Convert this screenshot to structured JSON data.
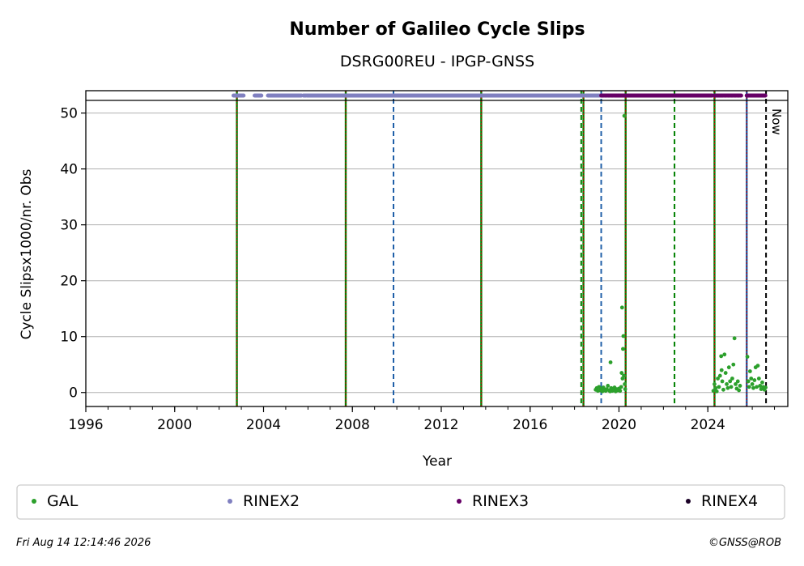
{
  "chart_data": {
    "type": "scatter",
    "title": "Number of Galileo Cycle Slips",
    "subtitle": "DSRG00REU - IPGP-GNSS",
    "xlabel": "Year",
    "ylabel": "Cycle Slipsx1000/nr. Obs",
    "xlim": [
      1996.0,
      2027.6
    ],
    "ylim": [
      -2.5,
      54
    ],
    "xticks": [
      1996,
      2000,
      2004,
      2008,
      2012,
      2016,
      2020,
      2024
    ],
    "yticks": [
      0,
      10,
      20,
      30,
      40,
      50
    ],
    "grid": "horizontal",
    "now_label": "Now",
    "now_x": 2026.62,
    "legend": {
      "placement": "bottom",
      "entries": [
        {
          "label": "GAL",
          "color": "#2ca02c"
        },
        {
          "label": "RINEX2",
          "color": "#8080c0"
        },
        {
          "label": "RINEX3",
          "color": "#660066"
        },
        {
          "label": "RINEX4",
          "color": "#1a0026"
        }
      ]
    },
    "event_lines": [
      {
        "x": 2002.8,
        "style": "solid",
        "colors": [
          "#008000",
          "#cc0000"
        ]
      },
      {
        "x": 2007.7,
        "style": "solid",
        "colors": [
          "#008000",
          "#cc0000"
        ]
      },
      {
        "x": 2009.85,
        "style": "dashed",
        "colors": [
          "#1f5fa8"
        ]
      },
      {
        "x": 2013.8,
        "style": "solid",
        "colors": [
          "#008000",
          "#cc0000"
        ]
      },
      {
        "x": 2018.3,
        "style": "dashed",
        "colors": [
          "#008000"
        ]
      },
      {
        "x": 2018.4,
        "style": "solid",
        "colors": [
          "#008000",
          "#cc0000"
        ]
      },
      {
        "x": 2019.2,
        "style": "dashed",
        "colors": [
          "#1f5fa8"
        ]
      },
      {
        "x": 2020.3,
        "style": "solid",
        "colors": [
          "#008000",
          "#cc0000"
        ]
      },
      {
        "x": 2022.5,
        "style": "dashed",
        "colors": [
          "#008000"
        ]
      },
      {
        "x": 2024.3,
        "style": "solid",
        "colors": [
          "#008000",
          "#cc0000"
        ]
      },
      {
        "x": 2025.75,
        "style": "solid",
        "colors": [
          "#1f5fa8",
          "#cc0000"
        ]
      }
    ],
    "rinex_bands": [
      {
        "name": "RINEX2",
        "segments": [
          [
            2002.65,
            2003.1
          ],
          [
            2003.6,
            2003.9
          ],
          [
            2004.2,
            2005.7
          ],
          [
            2005.8,
            2018.4
          ],
          [
            2018.5,
            2019.2
          ]
        ]
      },
      {
        "name": "RINEX3",
        "segments": [
          [
            2019.2,
            2024.2
          ],
          [
            2024.3,
            2025.5
          ],
          [
            2025.75,
            2026.62
          ]
        ]
      }
    ],
    "series": [
      {
        "name": "GAL",
        "color": "#2ca02c",
        "points": [
          [
            2018.95,
            0.5
          ],
          [
            2019.0,
            0.8
          ],
          [
            2019.05,
            0.3
          ],
          [
            2019.1,
            1.0
          ],
          [
            2019.15,
            0.4
          ],
          [
            2019.2,
            0.7
          ],
          [
            2019.25,
            0.2
          ],
          [
            2019.3,
            0.9
          ],
          [
            2019.35,
            0.5
          ],
          [
            2019.4,
            0.3
          ],
          [
            2019.45,
            0.6
          ],
          [
            2019.5,
            1.2
          ],
          [
            2019.55,
            0.4
          ],
          [
            2019.6,
            0.2
          ],
          [
            2019.62,
            5.4
          ],
          [
            2019.65,
            0.8
          ],
          [
            2019.7,
            0.3
          ],
          [
            2019.75,
            0.5
          ],
          [
            2019.8,
            0.9
          ],
          [
            2019.85,
            0.2
          ],
          [
            2019.9,
            0.6
          ],
          [
            2019.95,
            0.4
          ],
          [
            2020.0,
            0.7
          ],
          [
            2020.05,
            0.3
          ],
          [
            2020.1,
            1.0
          ],
          [
            2020.12,
            3.5
          ],
          [
            2020.14,
            15.2
          ],
          [
            2020.16,
            2.5
          ],
          [
            2020.18,
            7.8
          ],
          [
            2020.2,
            10.1
          ],
          [
            2020.22,
            3.0
          ],
          [
            2020.24,
            49.5
          ],
          [
            2020.26,
            1.5
          ],
          [
            2020.28,
            0.6
          ],
          [
            2024.25,
            0.3
          ],
          [
            2024.3,
            1.5
          ],
          [
            2024.35,
            0.8
          ],
          [
            2024.4,
            0.2
          ],
          [
            2024.45,
            2.5
          ],
          [
            2024.5,
            1.0
          ],
          [
            2024.55,
            3.0
          ],
          [
            2024.6,
            6.5
          ],
          [
            2024.62,
            4.0
          ],
          [
            2024.65,
            2.0
          ],
          [
            2024.7,
            0.5
          ],
          [
            2024.75,
            6.8
          ],
          [
            2024.8,
            3.5
          ],
          [
            2024.85,
            1.5
          ],
          [
            2024.9,
            0.8
          ],
          [
            2024.95,
            4.5
          ],
          [
            2025.0,
            2.0
          ],
          [
            2025.05,
            1.0
          ],
          [
            2025.1,
            2.5
          ],
          [
            2025.15,
            5.0
          ],
          [
            2025.2,
            9.7
          ],
          [
            2025.25,
            1.5
          ],
          [
            2025.3,
            0.7
          ],
          [
            2025.35,
            2.0
          ],
          [
            2025.4,
            0.4
          ],
          [
            2025.45,
            1.2
          ],
          [
            2025.78,
            6.4
          ],
          [
            2025.82,
            2.0
          ],
          [
            2025.86,
            1.0
          ],
          [
            2025.9,
            3.8
          ],
          [
            2025.95,
            2.5
          ],
          [
            2026.0,
            1.5
          ],
          [
            2026.05,
            0.8
          ],
          [
            2026.1,
            2.2
          ],
          [
            2026.15,
            4.5
          ],
          [
            2026.2,
            1.0
          ],
          [
            2026.25,
            4.8
          ],
          [
            2026.3,
            2.5
          ],
          [
            2026.35,
            1.2
          ],
          [
            2026.4,
            0.6
          ],
          [
            2026.45,
            1.8
          ],
          [
            2026.5,
            1.0
          ],
          [
            2026.55,
            0.5
          ],
          [
            2026.6,
            0.9
          ]
        ]
      }
    ]
  },
  "footer": {
    "timestamp": "Fri Aug 14 12:14:46 2026",
    "copyright": "©GNSS@ROB"
  }
}
